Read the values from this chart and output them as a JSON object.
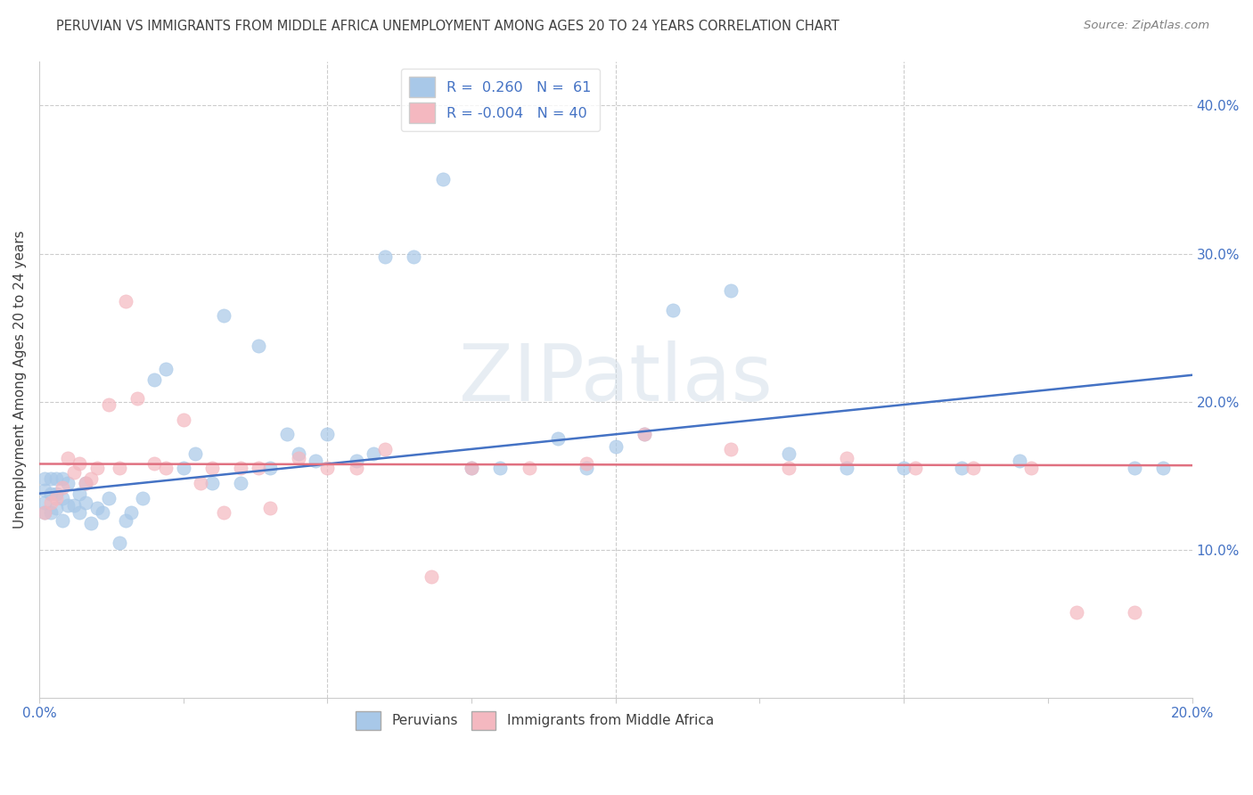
{
  "title": "PERUVIAN VS IMMIGRANTS FROM MIDDLE AFRICA UNEMPLOYMENT AMONG AGES 20 TO 24 YEARS CORRELATION CHART",
  "source": "Source: ZipAtlas.com",
  "ylabel": "Unemployment Among Ages 20 to 24 years",
  "xlim": [
    0.0,
    0.2
  ],
  "ylim": [
    0.0,
    0.43
  ],
  "xticks": [
    0.0,
    0.025,
    0.05,
    0.075,
    0.1,
    0.125,
    0.15,
    0.175,
    0.2
  ],
  "yticks_right": [
    0.1,
    0.2,
    0.3,
    0.4
  ],
  "ytick_labels_right": [
    "10.0%",
    "20.0%",
    "30.0%",
    "40.0%"
  ],
  "legend_labels": [
    "Peruvians",
    "Immigrants from Middle Africa"
  ],
  "r_peruvian": 0.26,
  "n_peruvian": 61,
  "r_africa": -0.004,
  "n_africa": 40,
  "blue_color": "#a8c8e8",
  "pink_color": "#f4b8c0",
  "trend_blue": "#4472c4",
  "trend_pink": "#e07080",
  "watermark_text": "ZIPatlas",
  "background_color": "#ffffff",
  "grid_color": "#cccccc",
  "title_color": "#404040",
  "source_color": "#808080",
  "axis_label_color": "#404040",
  "tick_label_color": "#4472c4",
  "legend_text_color": "#4472c4",
  "peruvian_x": [
    0.001,
    0.001,
    0.001,
    0.001,
    0.002,
    0.002,
    0.002,
    0.003,
    0.003,
    0.003,
    0.004,
    0.004,
    0.004,
    0.005,
    0.005,
    0.006,
    0.007,
    0.007,
    0.008,
    0.008,
    0.009,
    0.01,
    0.011,
    0.012,
    0.014,
    0.015,
    0.016,
    0.018,
    0.02,
    0.022,
    0.025,
    0.027,
    0.03,
    0.032,
    0.035,
    0.038,
    0.04,
    0.043,
    0.045,
    0.048,
    0.05,
    0.055,
    0.058,
    0.06,
    0.065,
    0.07,
    0.075,
    0.08,
    0.09,
    0.095,
    0.1,
    0.105,
    0.11,
    0.12,
    0.13,
    0.14,
    0.15,
    0.16,
    0.17,
    0.19,
    0.195
  ],
  "peruvian_y": [
    0.125,
    0.132,
    0.14,
    0.148,
    0.125,
    0.138,
    0.148,
    0.128,
    0.138,
    0.148,
    0.12,
    0.135,
    0.148,
    0.13,
    0.145,
    0.13,
    0.125,
    0.138,
    0.132,
    0.145,
    0.118,
    0.128,
    0.125,
    0.135,
    0.105,
    0.12,
    0.125,
    0.135,
    0.215,
    0.222,
    0.155,
    0.165,
    0.145,
    0.258,
    0.145,
    0.238,
    0.155,
    0.178,
    0.165,
    0.16,
    0.178,
    0.16,
    0.165,
    0.298,
    0.298,
    0.35,
    0.155,
    0.155,
    0.175,
    0.155,
    0.17,
    0.178,
    0.262,
    0.275,
    0.165,
    0.155,
    0.155,
    0.155,
    0.16,
    0.155,
    0.155
  ],
  "africa_x": [
    0.001,
    0.002,
    0.003,
    0.004,
    0.005,
    0.006,
    0.007,
    0.008,
    0.009,
    0.01,
    0.012,
    0.014,
    0.015,
    0.017,
    0.02,
    0.022,
    0.025,
    0.028,
    0.03,
    0.032,
    0.035,
    0.038,
    0.04,
    0.045,
    0.05,
    0.055,
    0.06,
    0.068,
    0.075,
    0.085,
    0.095,
    0.105,
    0.12,
    0.13,
    0.14,
    0.152,
    0.162,
    0.172,
    0.18,
    0.19
  ],
  "africa_y": [
    0.125,
    0.132,
    0.135,
    0.142,
    0.162,
    0.152,
    0.158,
    0.145,
    0.148,
    0.155,
    0.198,
    0.155,
    0.268,
    0.202,
    0.158,
    0.155,
    0.188,
    0.145,
    0.155,
    0.125,
    0.155,
    0.155,
    0.128,
    0.162,
    0.155,
    0.155,
    0.168,
    0.082,
    0.155,
    0.155,
    0.158,
    0.178,
    0.168,
    0.155,
    0.162,
    0.155,
    0.155,
    0.155,
    0.058,
    0.058
  ],
  "trend_blue_x0": 0.0,
  "trend_blue_y0": 0.138,
  "trend_blue_x1": 0.2,
  "trend_blue_y1": 0.218,
  "trend_pink_x0": 0.0,
  "trend_pink_y0": 0.158,
  "trend_pink_x1": 0.2,
  "trend_pink_y1": 0.157
}
